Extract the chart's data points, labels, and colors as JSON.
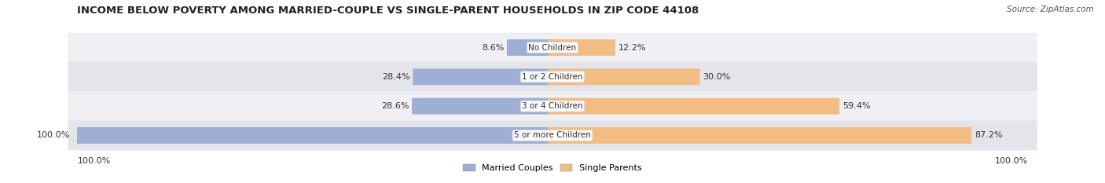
{
  "title": "INCOME BELOW POVERTY AMONG MARRIED-COUPLE VS SINGLE-PARENT HOUSEHOLDS IN ZIP CODE 44108",
  "source": "Source: ZipAtlas.com",
  "categories": [
    "No Children",
    "1 or 2 Children",
    "3 or 4 Children",
    "5 or more Children"
  ],
  "married_values": [
    8.6,
    28.4,
    28.6,
    100.0
  ],
  "single_values": [
    12.2,
    30.0,
    59.4,
    87.2
  ],
  "married_color": "#9faed4",
  "single_color": "#f2bc84",
  "row_bg_light": "#f0f0f4",
  "row_bg_dark": "#e4e5ea",
  "fig_bg": "#ffffff",
  "max_value": 100.0,
  "title_fontsize": 9.5,
  "source_fontsize": 7.5,
  "label_fontsize": 8,
  "cat_fontsize": 7.5,
  "figsize": [
    14.06,
    2.33
  ],
  "dpi": 100,
  "x_min_label": "100.0%",
  "x_max_label": "100.0%",
  "legend_married": "Married Couples",
  "legend_single": "Single Parents"
}
